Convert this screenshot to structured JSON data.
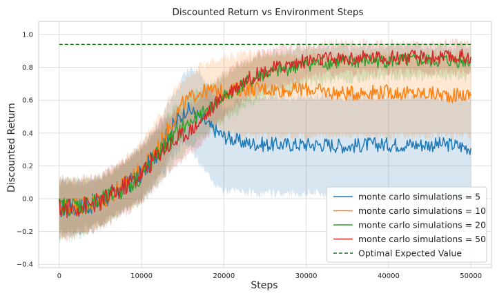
{
  "chart_data": {
    "type": "line",
    "title": "Discounted Return vs Environment Steps",
    "xlabel": "Steps",
    "ylabel": "Discounted Return",
    "xlim": [
      -2500,
      52500
    ],
    "ylim": [
      -0.42,
      1.08
    ],
    "x_ticks": [
      0,
      10000,
      20000,
      30000,
      40000,
      50000
    ],
    "y_ticks": [
      -0.4,
      -0.2,
      0.0,
      0.2,
      0.4,
      0.6,
      0.8,
      1.0
    ],
    "x_tick_labels": [
      "0",
      "10000",
      "20000",
      "30000",
      "40000",
      "50000"
    ],
    "y_tick_labels": [
      "−0.4",
      "−0.2",
      "0.0",
      "0.2",
      "0.4",
      "0.6",
      "0.8",
      "1.0"
    ],
    "grid": true,
    "legend_position": "bottom-right",
    "series": [
      {
        "name": "monte carlo simulations = 5",
        "color": "#1f77b4",
        "x": [
          0,
          2500,
          5000,
          7500,
          10000,
          12500,
          14000,
          15500,
          17000,
          18500,
          20000,
          22500,
          25000,
          27500,
          30000,
          32500,
          35000,
          37500,
          40000,
          42500,
          45000,
          47500,
          50000
        ],
        "y": [
          -0.06,
          -0.05,
          -0.02,
          0.06,
          0.15,
          0.33,
          0.45,
          0.55,
          0.5,
          0.43,
          0.38,
          0.34,
          0.33,
          0.33,
          0.33,
          0.33,
          0.32,
          0.33,
          0.33,
          0.33,
          0.33,
          0.33,
          0.31
        ],
        "lower": [
          -0.22,
          -0.2,
          -0.15,
          -0.08,
          0.0,
          0.15,
          0.28,
          0.35,
          0.22,
          0.1,
          0.05,
          0.04,
          0.03,
          0.03,
          0.03,
          0.03,
          0.02,
          0.02,
          0.02,
          0.02,
          0.02,
          0.02,
          0.02
        ],
        "upper": [
          0.1,
          0.1,
          0.12,
          0.2,
          0.32,
          0.5,
          0.63,
          0.78,
          0.78,
          0.65,
          0.55,
          0.6,
          0.62,
          0.62,
          0.62,
          0.62,
          0.62,
          0.62,
          0.62,
          0.62,
          0.62,
          0.62,
          0.6
        ]
      },
      {
        "name": "monte carlo simulations = 10",
        "color": "#ff7f0e",
        "x": [
          0,
          2500,
          5000,
          7500,
          10000,
          12500,
          14000,
          15500,
          17000,
          18500,
          20000,
          22500,
          25000,
          27500,
          30000,
          32500,
          35000,
          37500,
          40000,
          42500,
          45000,
          47500,
          50000
        ],
        "y": [
          -0.05,
          -0.04,
          -0.02,
          0.07,
          0.17,
          0.35,
          0.5,
          0.6,
          0.65,
          0.66,
          0.65,
          0.67,
          0.67,
          0.66,
          0.67,
          0.65,
          0.64,
          0.65,
          0.65,
          0.64,
          0.64,
          0.63,
          0.63
        ],
        "lower": [
          -0.22,
          -0.2,
          -0.16,
          -0.08,
          0.0,
          0.18,
          0.33,
          0.45,
          0.5,
          0.48,
          0.4,
          0.38,
          0.38,
          0.38,
          0.38,
          0.38,
          0.38,
          0.38,
          0.38,
          0.38,
          0.38,
          0.38,
          0.38
        ],
        "upper": [
          0.1,
          0.1,
          0.12,
          0.22,
          0.35,
          0.53,
          0.67,
          0.75,
          0.8,
          0.84,
          0.86,
          0.88,
          0.88,
          0.88,
          0.88,
          0.88,
          0.88,
          0.88,
          0.88,
          0.88,
          0.88,
          0.88,
          0.88
        ]
      },
      {
        "name": "monte carlo simulations = 20",
        "color": "#2ca02c",
        "x": [
          0,
          2500,
          5000,
          7500,
          10000,
          12500,
          14000,
          15500,
          17000,
          18500,
          20000,
          22500,
          25000,
          27500,
          30000,
          32500,
          35000,
          37500,
          40000,
          42500,
          45000,
          47500,
          50000
        ],
        "y": [
          -0.05,
          -0.04,
          -0.02,
          0.05,
          0.14,
          0.3,
          0.38,
          0.45,
          0.5,
          0.56,
          0.62,
          0.7,
          0.76,
          0.79,
          0.82,
          0.83,
          0.83,
          0.84,
          0.84,
          0.84,
          0.84,
          0.84,
          0.84
        ],
        "lower": [
          -0.25,
          -0.22,
          -0.18,
          -0.1,
          -0.02,
          0.12,
          0.22,
          0.3,
          0.36,
          0.42,
          0.48,
          0.56,
          0.62,
          0.66,
          0.7,
          0.72,
          0.72,
          0.74,
          0.74,
          0.74,
          0.74,
          0.74,
          0.74
        ],
        "upper": [
          0.12,
          0.12,
          0.14,
          0.2,
          0.3,
          0.46,
          0.55,
          0.62,
          0.66,
          0.71,
          0.76,
          0.82,
          0.88,
          0.9,
          0.92,
          0.93,
          0.93,
          0.93,
          0.93,
          0.93,
          0.93,
          0.93,
          0.93
        ]
      },
      {
        "name": "monte carlo simulations = 50",
        "color": "#d62728",
        "x": [
          0,
          2500,
          5000,
          7500,
          10000,
          12500,
          14000,
          15500,
          17000,
          18500,
          20000,
          22500,
          25000,
          27500,
          30000,
          32500,
          35000,
          37500,
          40000,
          42500,
          45000,
          47500,
          50000
        ],
        "y": [
          -0.06,
          -0.05,
          -0.02,
          0.06,
          0.15,
          0.3,
          0.35,
          0.4,
          0.46,
          0.55,
          0.63,
          0.72,
          0.78,
          0.81,
          0.84,
          0.85,
          0.85,
          0.86,
          0.86,
          0.86,
          0.86,
          0.86,
          0.87
        ],
        "lower": [
          -0.25,
          -0.22,
          -0.18,
          -0.1,
          -0.02,
          0.12,
          0.2,
          0.26,
          0.32,
          0.42,
          0.5,
          0.6,
          0.66,
          0.7,
          0.74,
          0.76,
          0.76,
          0.77,
          0.77,
          0.77,
          0.77,
          0.77,
          0.78
        ],
        "upper": [
          0.12,
          0.12,
          0.14,
          0.22,
          0.32,
          0.48,
          0.52,
          0.56,
          0.62,
          0.68,
          0.76,
          0.84,
          0.9,
          0.92,
          0.94,
          0.95,
          0.95,
          0.95,
          0.95,
          0.95,
          0.95,
          0.95,
          0.95
        ]
      }
    ],
    "reference_line": {
      "name": "Optimal Expected Value",
      "color": "#1a7a1a",
      "style": "dashed",
      "y": 0.94,
      "x_range": [
        0,
        50000
      ]
    }
  }
}
